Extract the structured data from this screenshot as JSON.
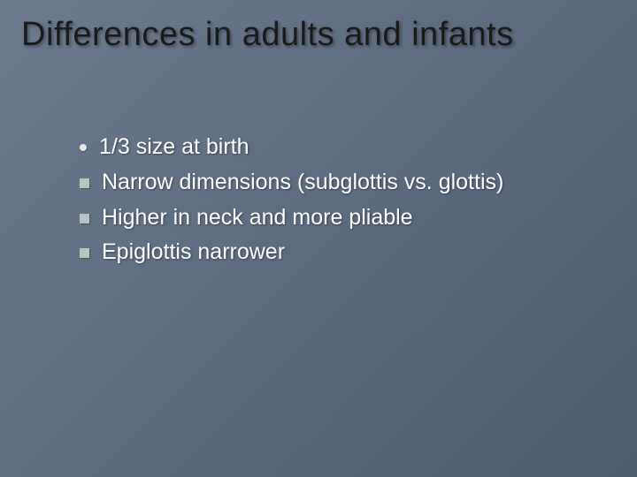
{
  "slide": {
    "title": "Differences in adults and infants",
    "title_color": "#1a1a1a",
    "title_fontsize": 38,
    "background_gradient": [
      "#6b7a8f",
      "#5f6e82",
      "#56657a",
      "#4d5c71"
    ],
    "text_color": "#ffffff",
    "body_fontsize": 25,
    "bullet_disc_color": "#e8e8e8",
    "bullet_square_color": "#b9c3c2",
    "items": [
      {
        "bullet": "disc",
        "text": "1/3 size at birth"
      },
      {
        "bullet": "square",
        "text": "Narrow dimensions (subglottis vs. glottis)"
      },
      {
        "bullet": "square",
        "text": "Higher in neck and more pliable"
      },
      {
        "bullet": "square",
        "text": "Epiglottis narrower"
      }
    ]
  }
}
